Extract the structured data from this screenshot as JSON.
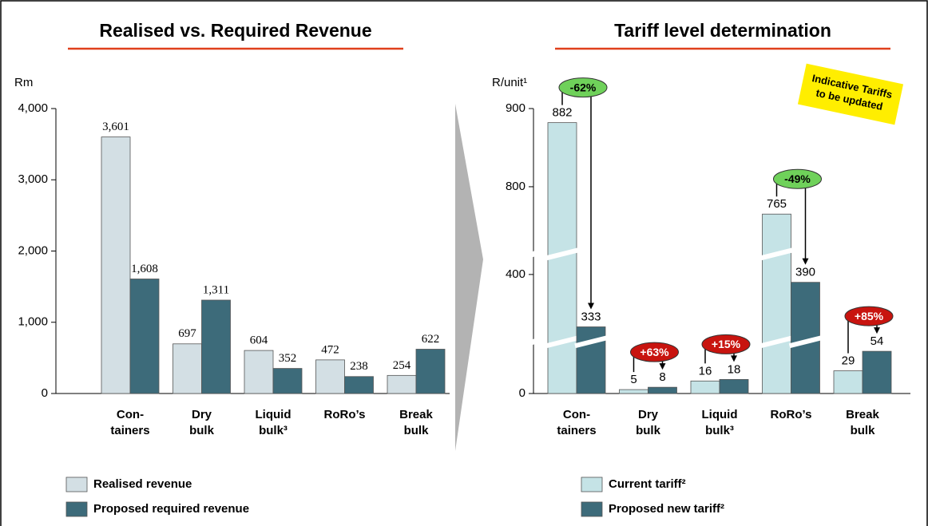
{
  "chart_data": [
    {
      "type": "bar",
      "title": "Realised vs. Required Revenue",
      "y_label": "Rm",
      "categories": [
        "Con-\ntainers",
        "Dry\nbulk",
        "Liquid\nbulk³",
        "RoRo’s",
        "Break\nbulk"
      ],
      "series": [
        {
          "name": "Realised revenue",
          "color": "#d3dfe4",
          "values": [
            3601,
            697,
            604,
            472,
            254
          ],
          "value_labels": [
            "3,601",
            "697",
            "604",
            "472",
            "254"
          ]
        },
        {
          "name": "Proposed required revenue",
          "color": "#3d6b7a",
          "values": [
            1608,
            1311,
            352,
            238,
            622
          ],
          "value_labels": [
            "1,608",
            "1,311",
            "352",
            "238",
            "622"
          ]
        }
      ],
      "ylim": [
        0,
        4000
      ],
      "yticks": [
        0,
        {
          "value": 1000,
          "label": "1,000"
        },
        {
          "value": 2000,
          "label": "2,000"
        },
        {
          "value": 3000,
          "label": "3,000"
        },
        {
          "value": 4000,
          "label": "4,000"
        }
      ]
    },
    {
      "type": "bar",
      "title": "Tariff level determination",
      "y_label": "R/unit¹",
      "categories": [
        "Con-\ntainers",
        "Dry\nbulk",
        "Liquid\nbulk³",
        "RoRo’s",
        "Break\nbulk"
      ],
      "series": [
        {
          "name": "Current tariff²",
          "color": "#c5e3e6",
          "values": [
            882,
            5,
            16,
            765,
            29
          ]
        },
        {
          "name": "Proposed new tariff²",
          "color": "#3d6b7a",
          "values": [
            333,
            8,
            18,
            390,
            54
          ]
        }
      ],
      "changes": [
        "-62%",
        "+63%",
        "+15%",
        "-49%",
        "+85%"
      ],
      "change_colors": [
        "#6fd15a",
        "#c8140f",
        "#c8140f",
        "#6fd15a",
        "#c8140f"
      ],
      "change_text_colors": [
        "#000000",
        "#ffffff",
        "#ffffff",
        "#000000",
        "#ffffff"
      ],
      "ylim": [
        0,
        900
      ],
      "yticks": [
        0,
        400,
        800,
        900
      ],
      "y_breaks": [
        [
          60,
          320
        ],
        [
          420,
          720
        ]
      ],
      "note": [
        "Indicative Tariffs",
        "to be updated"
      ]
    }
  ]
}
